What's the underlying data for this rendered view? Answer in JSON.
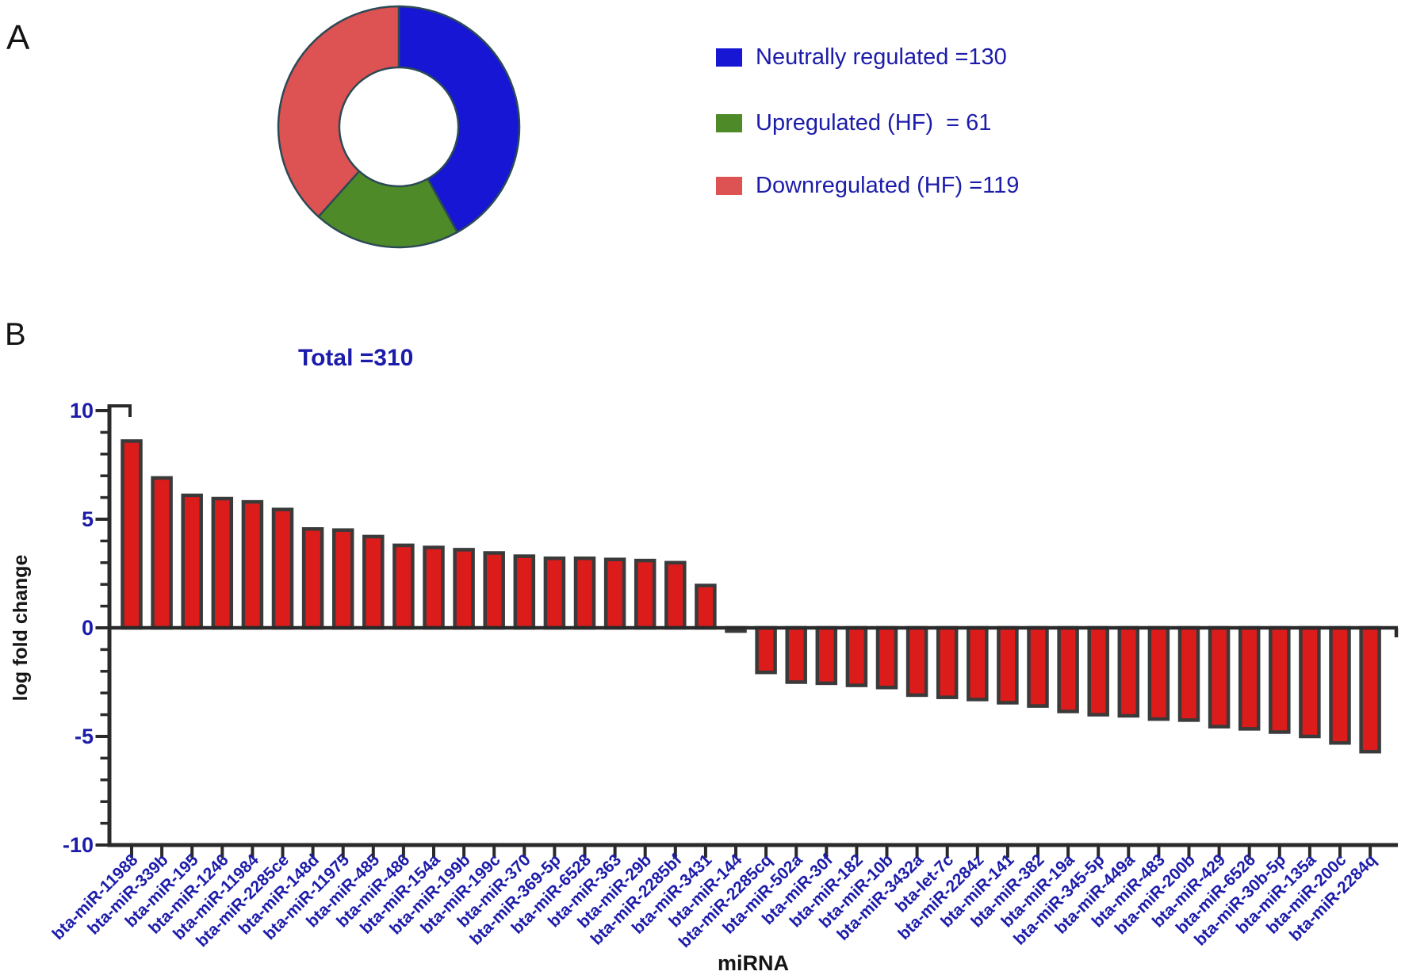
{
  "figure": {
    "panel_a_label": "A",
    "panel_b_label": "B"
  },
  "panel_a": {
    "legend": [
      {
        "label": "Neutrally regulated =130",
        "color": "#1616d4"
      },
      {
        "label": "Upregulated (HF)  = 61",
        "color": "#4e8b28"
      },
      {
        "label": "Downregulated (HF) =119",
        "color": "#dd5252"
      }
    ],
    "total_label": "Total =310"
  },
  "chart_data": [
    {
      "type": "pie",
      "subtype": "donut",
      "title": "Total =310",
      "labels": [
        "Neutrally regulated",
        "Upregulated (HF)",
        "Downregulated (HF)"
      ],
      "values": [
        130,
        61,
        119
      ],
      "total": 310,
      "colors": [
        "#1616d4",
        "#4e8b28",
        "#dd5252"
      ],
      "outline_color": "#2c4a55",
      "start_angle_deg": 0,
      "clockwise": true,
      "legend_position": "right"
    },
    {
      "type": "bar",
      "xlabel": "miRNA",
      "ylabel": "log fold change",
      "ylim": [
        -10,
        10
      ],
      "yticks": [
        10,
        5,
        0,
        -5,
        -10
      ],
      "minor_tick_step": 1,
      "grid": false,
      "bar_color": "#dc1b1b",
      "bar_outline_color": "#3a3a3a",
      "axis_color": "#2a2a2a",
      "tick_label_color": "#1c1caa",
      "categories": [
        "bta-miR-11988",
        "bta-miR-339b",
        "bta-miR-195",
        "bta-miR-1246",
        "bta-miR-11984",
        "bta-miR-2285ce",
        "bta-miR-148d",
        "bta-miR-11975",
        "bta-miR-485",
        "bta-miR-486",
        "bta-miR-154a",
        "bta-miR-199b",
        "bta-miR-199c",
        "bta-miR-370",
        "bta-miR-369-5p",
        "bta-miR-6528",
        "bta-miR-363",
        "bta-miR-29b",
        "bta-miR-2285bf",
        "bta-miR-3431",
        "bta-miR-144",
        "bta-miR-2285cq",
        "bta-miR-502a",
        "bta-miR-30f",
        "bta-miR-182",
        "bta-miR-10b",
        "bta-miR-3432a",
        "bta-let-7c",
        "bta-miR-2284z",
        "bta-miR-141",
        "bta-miR-382",
        "bta-miR-19a",
        "bta-miR-345-5p",
        "bta-miR-449a",
        "bta-miR-483",
        "bta-miR-200b",
        "bta-miR-429",
        "bta-miR-6526",
        "bta-miR-30b-5p",
        "bta-miR-135a",
        "bta-miR-200c",
        "bta-miR-2284q"
      ],
      "values": [
        8.6,
        6.9,
        6.1,
        5.95,
        5.8,
        5.45,
        4.55,
        4.5,
        4.2,
        3.8,
        3.7,
        3.6,
        3.45,
        3.3,
        3.2,
        3.2,
        3.15,
        3.1,
        3.0,
        1.95,
        -0.15,
        -2.05,
        -2.5,
        -2.55,
        -2.65,
        -2.75,
        -3.1,
        -3.2,
        -3.3,
        -3.45,
        -3.6,
        -3.85,
        -4.0,
        -4.05,
        -4.2,
        -4.25,
        -4.55,
        -4.65,
        -4.8,
        -5.0,
        -5.3,
        -5.7
      ]
    }
  ]
}
